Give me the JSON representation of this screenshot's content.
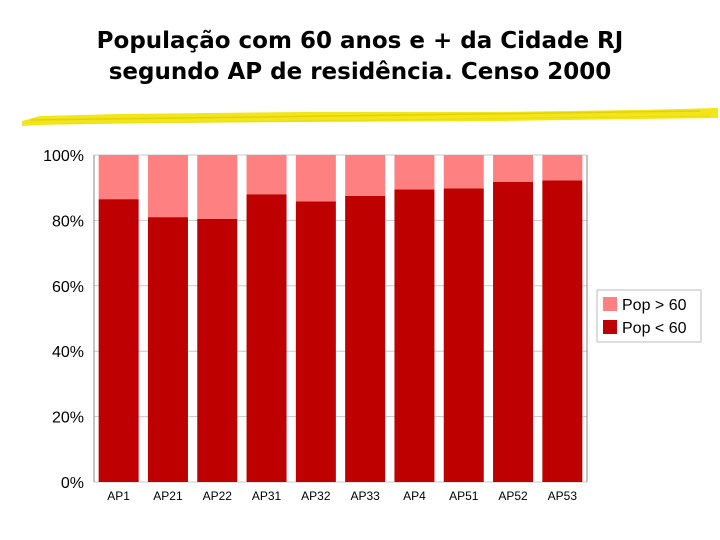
{
  "title_line1": "População com 60 anos e + da Cidade RJ",
  "title_line2": "segundo AP de residência. Censo 2000",
  "colors": {
    "under_60": "#bf0000",
    "over_60": "#ff8080",
    "underline": "#f2e51a"
  },
  "chart_data": {
    "type": "bar",
    "stacked": true,
    "categories": [
      "AP1",
      "AP21",
      "AP22",
      "AP31",
      "AP32",
      "AP33",
      "AP4",
      "AP51",
      "AP52",
      "AP53"
    ],
    "series": [
      {
        "name": "Pop < 60",
        "values": [
          86.5,
          81.0,
          80.5,
          88.0,
          85.8,
          87.5,
          89.5,
          89.8,
          91.8,
          92.2
        ]
      },
      {
        "name": "Pop > 60",
        "values": [
          13.5,
          19.0,
          19.5,
          12.0,
          14.2,
          12.5,
          10.5,
          10.2,
          8.2,
          7.8
        ]
      }
    ],
    "yticks": [
      "0%",
      "20%",
      "40%",
      "60%",
      "80%",
      "100%"
    ],
    "ylim": [
      0,
      100
    ],
    "grid": true,
    "legend_position": "right"
  }
}
